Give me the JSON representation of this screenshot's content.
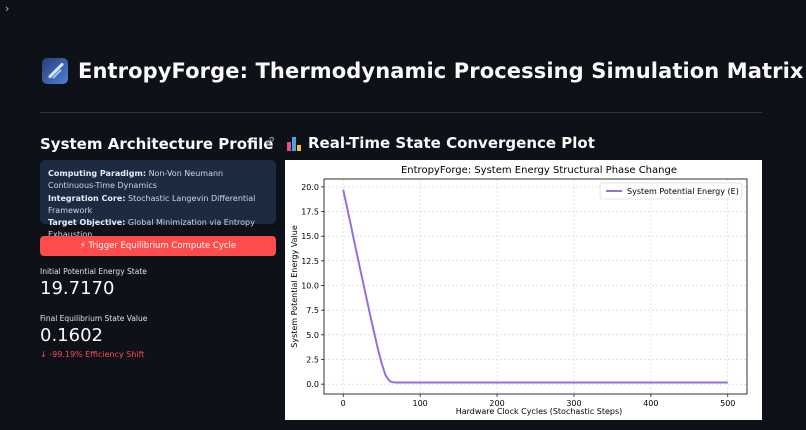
{
  "app": {
    "sidebar_toggle": "›",
    "title": "EntropyForge: Thermodynamic Processing Simulation Matrix"
  },
  "left": {
    "section_title": "System Architecture Profile",
    "info": {
      "paradigm_label": "Computing Paradigm:",
      "paradigm_value": " Non-Von Neumann Continuous-Time Dynamics",
      "core_label": "Integration Core:",
      "core_value": " Stochastic Langevin Differential Framework",
      "objective_label": "Target Objective:",
      "objective_value": " Global Minimization via Entropy Exhaustion"
    },
    "button_label": "⚡ Trigger Equilibrium Compute Cycle",
    "metric_initial_label": "Initial Potential Energy State",
    "metric_initial_value": "19.7170",
    "metric_final_label": "Final Equilibrium State Value",
    "metric_final_value": "0.1602",
    "metric_delta": "↓ -99.19% Efficiency Shift"
  },
  "right": {
    "section_title": "Real-Time State Convergence Plot"
  },
  "colors": {
    "accent": "#ff4b4b",
    "series": "#9370db",
    "background": "#0e1117",
    "info_bg": "#1c2b3f"
  },
  "chart_data": {
    "type": "line",
    "title": "EntropyForge: System Energy Structural Phase Change",
    "xlabel": "Hardware Clock Cycles (Stochastic Steps)",
    "ylabel": "System Potential Energy Value",
    "xlim": [
      -25,
      525
    ],
    "ylim": [
      -1.0,
      20.8
    ],
    "xticks": [
      0,
      100,
      200,
      300,
      400,
      500
    ],
    "yticks": [
      0.0,
      2.5,
      5.0,
      7.5,
      10.0,
      12.5,
      15.0,
      17.5,
      20.0
    ],
    "ytick_labels": [
      "0.0",
      "2.5",
      "5.0",
      "7.5",
      "10.0",
      "12.5",
      "15.0",
      "17.5",
      "20.0"
    ],
    "grid": true,
    "legend_position": "top-right",
    "series": [
      {
        "name": "System Potential Energy (E)",
        "x": [
          0,
          5,
          10,
          15,
          20,
          25,
          30,
          35,
          40,
          45,
          50,
          55,
          60,
          63,
          66,
          70,
          80,
          100,
          200,
          300,
          400,
          500
        ],
        "y": [
          19.72,
          17.9,
          16.1,
          14.2,
          12.4,
          10.6,
          8.8,
          7.0,
          5.3,
          3.6,
          2.1,
          0.9,
          0.35,
          0.22,
          0.18,
          0.17,
          0.165,
          0.162,
          0.161,
          0.1602,
          0.1602,
          0.1602
        ]
      }
    ]
  }
}
